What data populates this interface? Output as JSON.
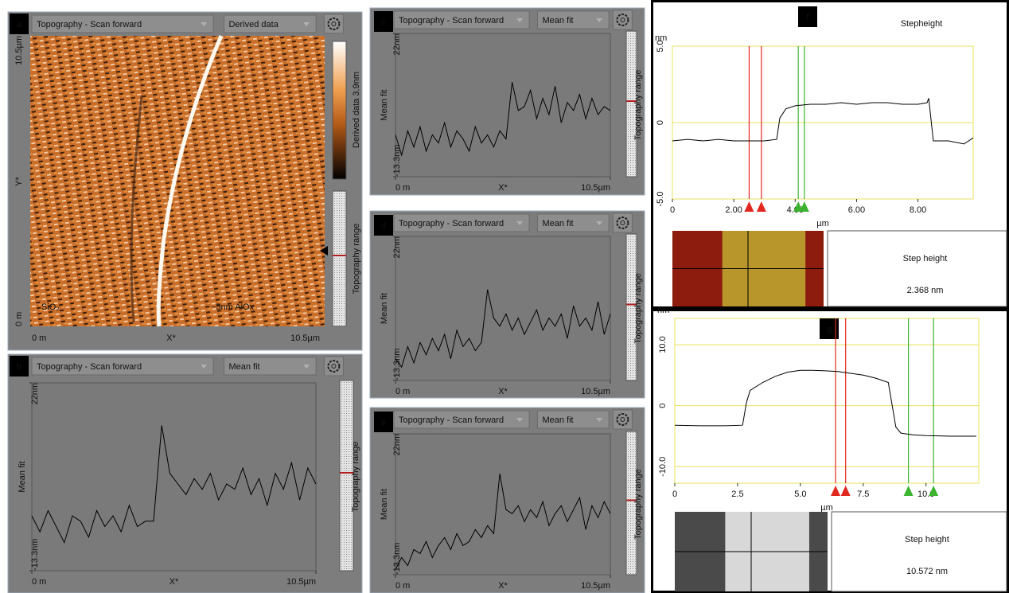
{
  "panel_a": {
    "letter": "a",
    "header": [
      "Topography - Scan forward",
      "Derived data"
    ],
    "colorbar_label": "Derived data 3.9nm",
    "side_label": "Topography range",
    "y_labels": [
      "10.5µm",
      "Y*",
      "0 m"
    ],
    "x_labels": [
      "0 m",
      "X*",
      "10.5µm"
    ],
    "annotations": [
      "SiO₂",
      "~5nm AlOx"
    ]
  },
  "chart_data": [
    {
      "type": "line",
      "style": "ui",
      "letter": "b",
      "header": [
        "Topography - Scan forward",
        "Mean fit"
      ],
      "side_label": "Topography range",
      "ylabel": "Mean fit",
      "xlabel": "X*",
      "ylim": [
        -13.3,
        22
      ],
      "yticks": [
        {
          "value": 22,
          "label": "22nm"
        },
        {
          "value": -13.3,
          "label": "-13.3nm"
        }
      ],
      "xlim": [
        0,
        10.5
      ],
      "xticks": [
        {
          "value": 0,
          "label": "0 m"
        },
        {
          "value": 10.5,
          "label": "10.5µm"
        }
      ],
      "x": [
        0,
        0.3,
        0.6,
        0.9,
        1.2,
        1.5,
        1.8,
        2.1,
        2.4,
        2.7,
        3,
        3.3,
        3.6,
        3.9,
        4.2,
        4.5,
        4.8,
        5.1,
        5.4,
        5.7,
        6,
        6.3,
        6.6,
        6.9,
        7.2,
        7.5,
        7.8,
        8.1,
        8.4,
        8.7,
        9,
        9.3,
        9.6,
        9.9,
        10.2,
        10.5
      ],
      "series": [
        {
          "color": "#000000",
          "values": [
            -3,
            -6,
            -2,
            -5,
            -8,
            -3,
            -4,
            -7,
            -2,
            -5,
            -3,
            -6,
            -1,
            -5,
            -4,
            -4,
            14,
            5,
            3,
            1,
            4,
            2,
            5,
            0,
            3,
            2,
            6,
            1,
            4,
            -1,
            5,
            2,
            7,
            0,
            6,
            3
          ]
        }
      ]
    },
    {
      "type": "line",
      "style": "ui",
      "letter": "c",
      "header": [
        "Topography - Scan forward",
        "Mean fit"
      ],
      "side_label": "Topography range",
      "ylabel": "Mean fit",
      "xlabel": "X*",
      "ylim": [
        -13.3,
        22
      ],
      "yticks": [
        {
          "value": 22,
          "label": "22nm"
        },
        {
          "value": -13.3,
          "label": "-13.3nm"
        }
      ],
      "xlim": [
        0,
        10.5
      ],
      "xticks": [
        {
          "value": 0,
          "label": "0 m"
        },
        {
          "value": 10.5,
          "label": "10.5µm"
        }
      ],
      "x": [
        0,
        0.3,
        0.6,
        0.9,
        1.2,
        1.5,
        1.8,
        2.1,
        2.4,
        2.7,
        3,
        3.3,
        3.6,
        3.9,
        4.2,
        4.5,
        4.8,
        5.1,
        5.4,
        5.7,
        6,
        6.3,
        6.6,
        6.9,
        7.2,
        7.5,
        7.8,
        8.1,
        8.4,
        8.7,
        9,
        9.3,
        9.6,
        9.9,
        10.2,
        10.5
      ],
      "series": [
        {
          "color": "#000000",
          "values": [
            -3,
            -8,
            -2,
            -6,
            -1,
            -7,
            -3,
            -5,
            0,
            -6,
            -2,
            -4,
            -7,
            -1,
            -5,
            -3,
            -6,
            -2,
            -4,
            10,
            3,
            4,
            8,
            1,
            6,
            2,
            9,
            0,
            5,
            3,
            7,
            1,
            6,
            2,
            4,
            3
          ]
        }
      ]
    },
    {
      "type": "line",
      "style": "ui",
      "letter": "d",
      "header": [
        "Topography - Scan forward",
        "Mean fit"
      ],
      "side_label": "Topography range",
      "ylabel": "Mean fit",
      "xlabel": "X*",
      "ylim": [
        -13.3,
        22
      ],
      "yticks": [
        {
          "value": 22,
          "label": "22nm"
        },
        {
          "value": -13.3,
          "label": "-13.3nm"
        }
      ],
      "xlim": [
        0,
        10.5
      ],
      "xticks": [
        {
          "value": 0,
          "label": "0 m"
        },
        {
          "value": 10.5,
          "label": "10.5µm"
        }
      ],
      "x": [
        0,
        0.3,
        0.6,
        0.9,
        1.2,
        1.5,
        1.8,
        2.1,
        2.4,
        2.7,
        3,
        3.3,
        3.6,
        3.9,
        4.2,
        4.5,
        4.8,
        5.1,
        5.4,
        5.7,
        6,
        6.3,
        6.6,
        6.9,
        7.2,
        7.5,
        7.8,
        8.1,
        8.4,
        8.7,
        9,
        9.3,
        9.6,
        9.9,
        10.2,
        10.5
      ],
      "series": [
        {
          "color": "#000000",
          "values": [
            -8,
            -10,
            -5,
            -9,
            -4,
            -7,
            -3,
            -6,
            -2,
            -8,
            -1,
            -5,
            -3,
            -6,
            -4,
            9,
            2,
            0,
            3,
            -1,
            2,
            -2,
            1,
            4,
            -1,
            2,
            0,
            3,
            -3,
            5,
            0,
            2,
            -1,
            6,
            -2,
            3
          ]
        }
      ]
    },
    {
      "type": "line",
      "style": "ui",
      "letter": "e",
      "header": [
        "Topography - Scan forward",
        "Mean fit"
      ],
      "side_label": "Topography range",
      "ylabel": "Mean fit",
      "xlabel": "X*",
      "ylim": [
        -13.3,
        22
      ],
      "yticks": [
        {
          "value": 22,
          "label": "22nm"
        },
        {
          "value": -13.3,
          "label": "-13.3nm"
        }
      ],
      "xlim": [
        0,
        10.5
      ],
      "xticks": [
        {
          "value": 0,
          "label": "0 m"
        },
        {
          "value": 10.5,
          "label": "10.5µm"
        }
      ],
      "x": [
        0,
        0.3,
        0.6,
        0.9,
        1.2,
        1.5,
        1.8,
        2.1,
        2.4,
        2.7,
        3,
        3.3,
        3.6,
        3.9,
        4.2,
        4.5,
        4.8,
        5.1,
        5.4,
        5.7,
        6,
        6.3,
        6.6,
        6.9,
        7.2,
        7.5,
        7.8,
        8.1,
        8.4,
        8.7,
        9,
        9.3,
        9.6,
        9.9,
        10.2,
        10.5
      ],
      "series": [
        {
          "color": "#000000",
          "values": [
            -12,
            -9,
            -11,
            -7,
            -8,
            -5,
            -9,
            -6,
            -4,
            -7,
            -3,
            -6,
            -5,
            -2,
            -4,
            -1,
            -3,
            12,
            3,
            2,
            4,
            0,
            3,
            1,
            5,
            -1,
            2,
            4,
            0,
            3,
            6,
            -2,
            4,
            1,
            5,
            2
          ]
        }
      ]
    },
    {
      "type": "line",
      "style": "plot",
      "letter": "f",
      "title": "Stepheight",
      "ylabel": "nm",
      "xlabel": "µm",
      "grid": true,
      "ylim": [
        -5,
        5
      ],
      "yticks": [
        {
          "value": 5,
          "label": "5.0"
        },
        0,
        {
          "value": -5,
          "label": "-5.0"
        }
      ],
      "xlim": [
        0,
        9.8
      ],
      "xticks": [
        0,
        {
          "value": 2,
          "label": "2.00"
        },
        {
          "value": 4,
          "label": "4.00"
        },
        {
          "value": 6,
          "label": "6.00"
        },
        {
          "value": 8,
          "label": "8.00"
        }
      ],
      "x": [
        0,
        0.5,
        1,
        1.5,
        2,
        2.5,
        3,
        3.4,
        3.5,
        3.7,
        4,
        4.5,
        5,
        5.5,
        6,
        6.5,
        7,
        7.5,
        8,
        8.3,
        8.35,
        8.5,
        9,
        9.5,
        9.8
      ],
      "series": [
        {
          "color": "#000000",
          "values": [
            -1.2,
            -1.1,
            -1.2,
            -1.1,
            -1.2,
            -1.2,
            -1.2,
            -1.1,
            0.3,
            0.9,
            1.1,
            1.2,
            1.2,
            1.3,
            1.2,
            1.3,
            1.3,
            1.2,
            1.2,
            1.3,
            1.6,
            -1.2,
            -1.2,
            -1.4,
            -1
          ]
        }
      ],
      "cursors": [
        {
          "color": "#e0281e",
          "x": [
            2.5,
            2.9
          ]
        },
        {
          "color": "#3cb430",
          "x": [
            4.1,
            4.3
          ]
        }
      ],
      "result_label": "Step height",
      "result_value": "2.368 nm"
    },
    {
      "type": "line",
      "style": "plot",
      "letter": "g",
      "ylabel": "nm",
      "xlabel": "µm",
      "grid": true,
      "ylim": [
        -12.7,
        14.3
      ],
      "yticks": [
        {
          "value": 10,
          "label": "10.0"
        },
        0,
        {
          "value": -10,
          "label": "-10.0"
        }
      ],
      "xlim": [
        0,
        12.1
      ],
      "xticks": [
        0,
        2.5,
        {
          "value": 5,
          "label": "5.0"
        },
        7.5,
        {
          "value": 10,
          "label": "10.0"
        }
      ],
      "x": [
        0,
        1,
        2,
        2.7,
        2.85,
        3,
        3.5,
        4,
        4.5,
        5,
        5.5,
        6,
        6.5,
        7,
        7.5,
        8,
        8.5,
        8.8,
        9,
        9.5,
        10,
        11,
        12
      ],
      "series": [
        {
          "color": "#000000",
          "values": [
            -3.2,
            -3.3,
            -3.3,
            -3.2,
            0.5,
            2.5,
            3.8,
            4.8,
            5.5,
            5.8,
            5.8,
            5.7,
            5.6,
            5.3,
            5,
            4.5,
            3.8,
            -3.5,
            -4.5,
            -4.8,
            -4.9,
            -5,
            -5
          ]
        }
      ],
      "cursors": [
        {
          "color": "#e0281e",
          "x": [
            6.4,
            6.8
          ]
        },
        {
          "color": "#3cb430",
          "x": [
            9.3,
            10.3
          ]
        }
      ],
      "result_label": "Step height",
      "result_value": "10.572 nm"
    }
  ]
}
